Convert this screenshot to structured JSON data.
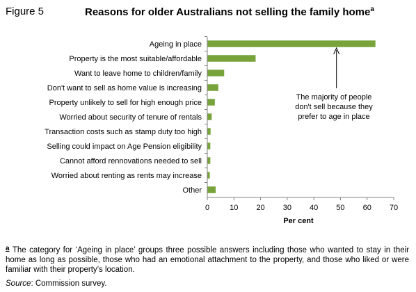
{
  "figure_label": "Figure 5",
  "title": "Reasons for older Australians not selling the family home",
  "title_note_marker": "a",
  "chart_data": {
    "type": "bar",
    "orientation": "horizontal",
    "categories": [
      "Ageing in place",
      "Property is the most suitable/affordable",
      "Want to leave home to children/family",
      "Don't want to sell as home value is increasing",
      "Property unlikely to sell for high enough price",
      "Worried about security of tenure of rentals",
      "Transaction costs such as stamp duty too high",
      "Selling could impact on Age Pension eligibility",
      "Cannot afford rennovations needed to sell",
      "Worried about renting as rents may increase",
      "Other"
    ],
    "values": [
      63,
      18,
      6.2,
      4,
      2.7,
      1.5,
      1.1,
      1.0,
      1.0,
      0.8,
      3.0
    ],
    "xlabel": "Per cent",
    "xlim": [
      0,
      70
    ],
    "xticks": [
      0,
      10,
      20,
      30,
      40,
      50,
      60,
      70
    ],
    "bar_color": "#77a33a",
    "grid": false,
    "annotation": {
      "lines": [
        "The majority of people",
        "don't sell because they",
        "prefer to age in place"
      ],
      "arrow_to_x": 48.5
    }
  },
  "footnote": {
    "marker": "a",
    "text": "The category for ‘Ageing in place’ groups three possible answers including those who wanted to stay in their home as long as possible, those who had an emotional attachment to the property, and those who liked or were familiar with their property’s location."
  },
  "source": {
    "label": "Source",
    "text": ": Commission survey."
  }
}
